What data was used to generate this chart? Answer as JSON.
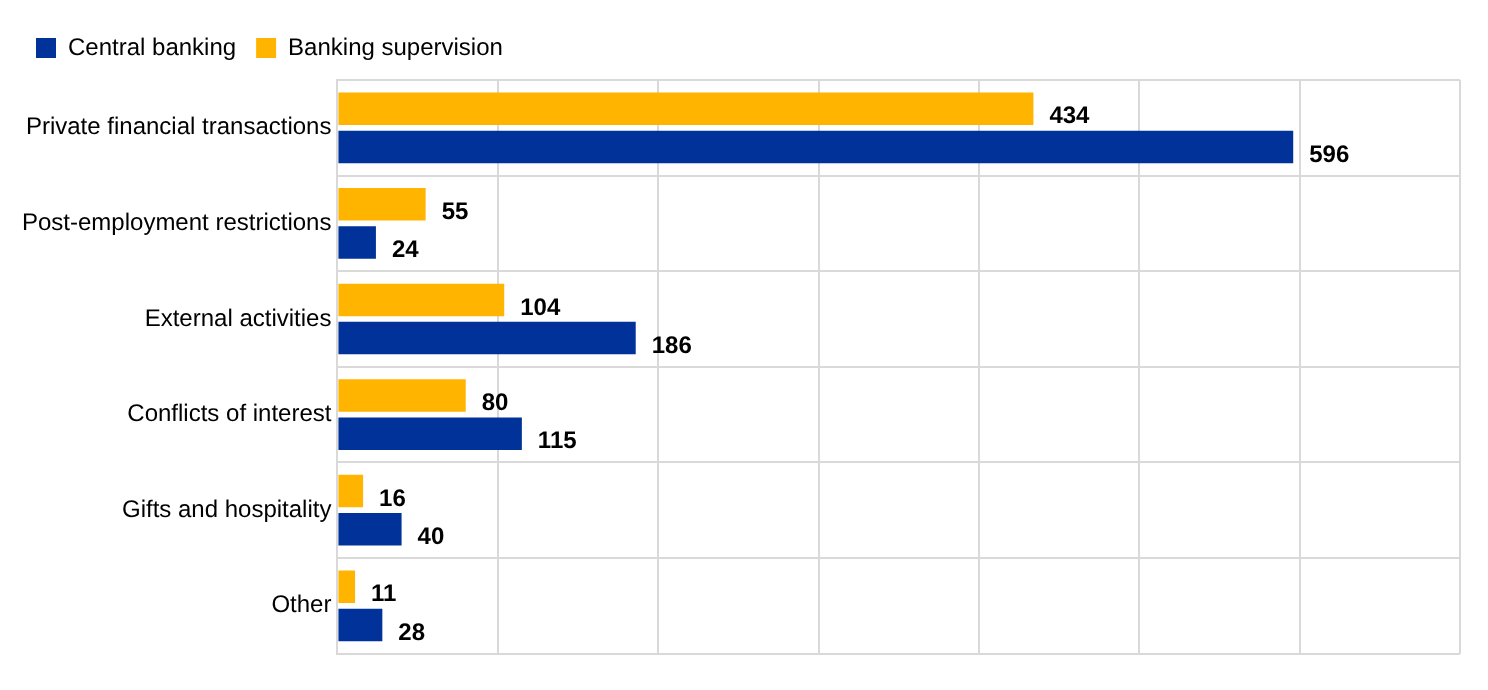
{
  "chart_data": {
    "type": "bar",
    "orientation": "horizontal",
    "categories": [
      "Private financial transactions",
      "Post-employment restrictions",
      "External activities",
      "Conflicts of interest",
      "Gifts and hospitality",
      "Other"
    ],
    "series": [
      {
        "name": "Central banking",
        "color": "#003299",
        "values": [
          596,
          24,
          186,
          115,
          40,
          28
        ]
      },
      {
        "name": "Banking supervision",
        "color": "#ffb400",
        "values": [
          434,
          55,
          104,
          80,
          16,
          11
        ]
      }
    ],
    "xlim": [
      0,
      700
    ],
    "xticks": [
      {
        "value": 0,
        "label": null
      },
      {
        "value": 100,
        "label": null
      },
      {
        "value": 200,
        "label": null
      },
      {
        "value": 300,
        "label": null
      },
      {
        "value": 400,
        "label": null
      },
      {
        "value": 500,
        "label": null
      },
      {
        "value": 600,
        "label": null
      },
      {
        "value": 700,
        "label": null
      }
    ],
    "tick_labels": "y",
    "grid": true,
    "legend": "top left",
    "data_labels": true
  }
}
